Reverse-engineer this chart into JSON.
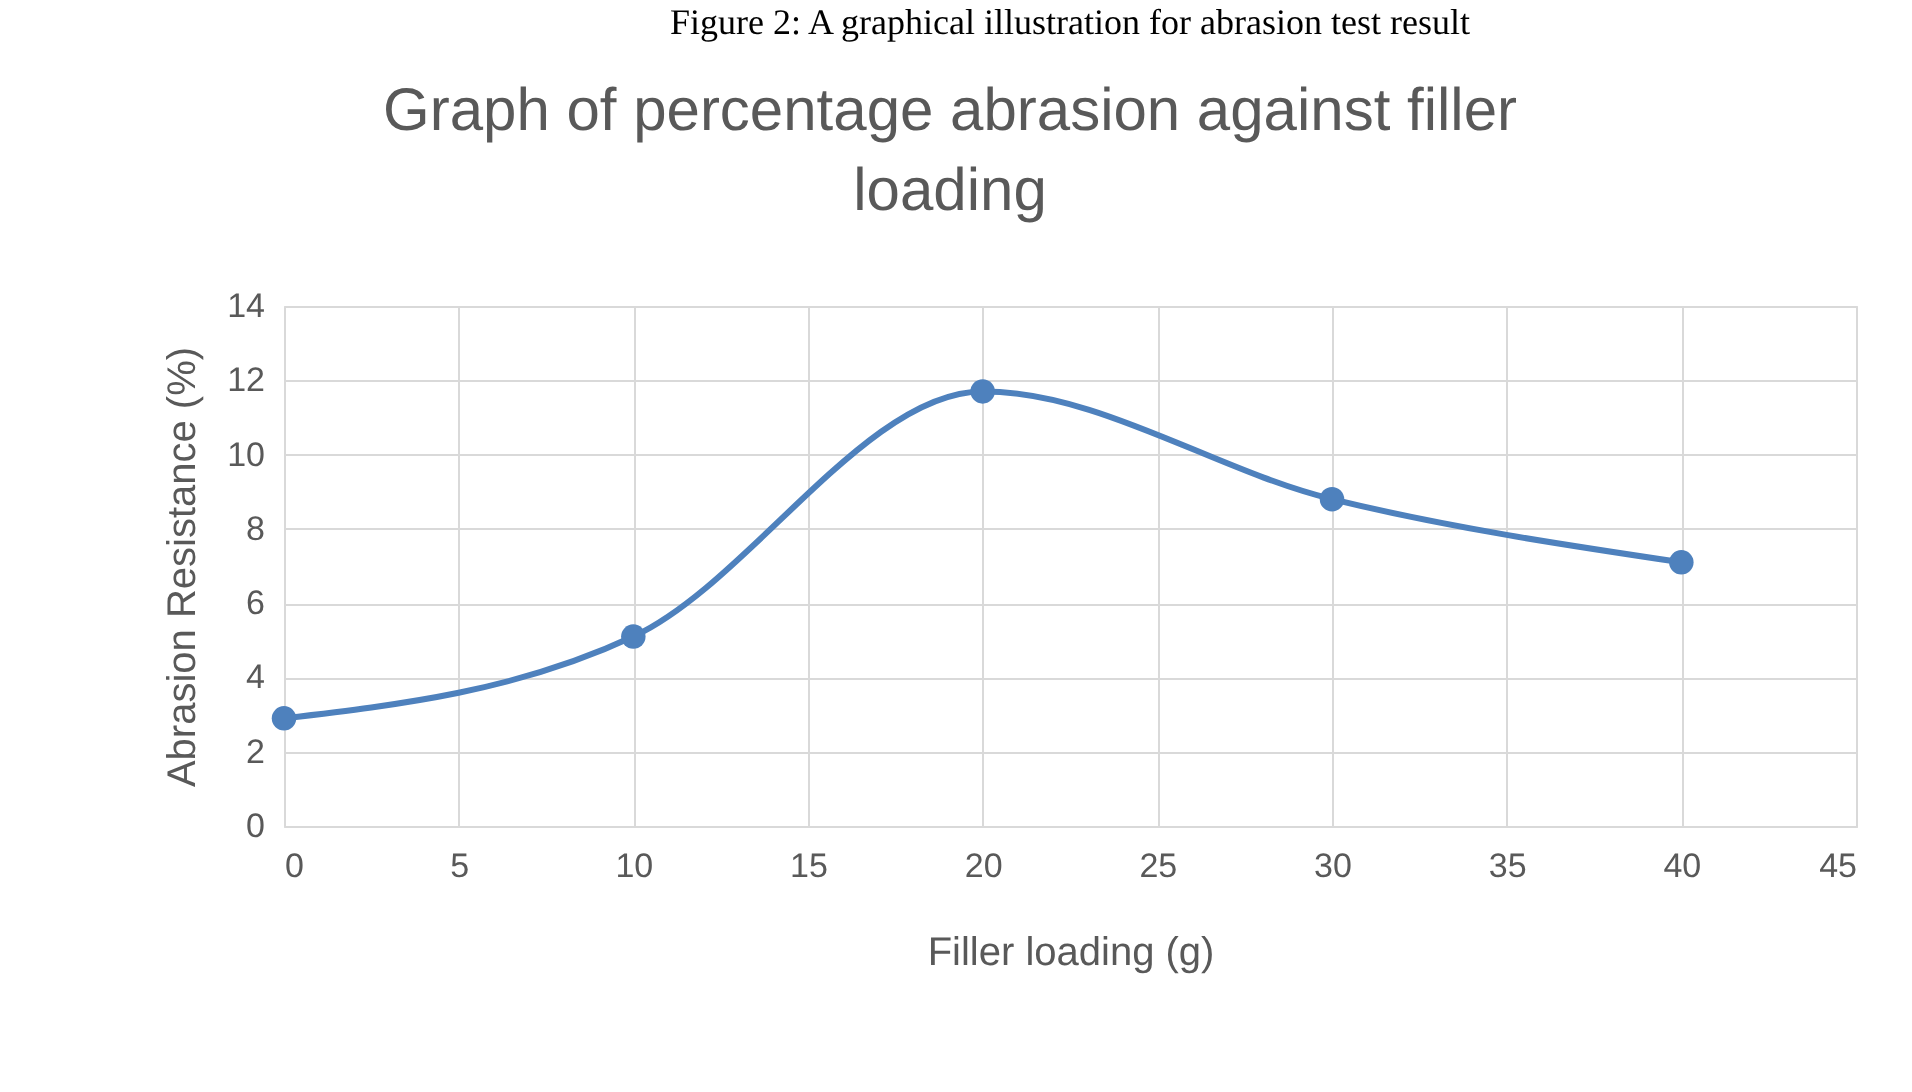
{
  "chart_data": {
    "type": "line",
    "title": [
      "Graph of percentage abrasion against filler",
      "loading"
    ],
    "annotations": [
      "Figure 2: A graphical illustration for abrasion test result"
    ],
    "xlabel": "Filler loading (g)",
    "ylabel": "Abrasion Resistance (%)",
    "x": [
      0,
      10,
      20,
      30,
      40
    ],
    "series": [
      {
        "color": "#4e81bd",
        "values": [
          2.9,
          5.1,
          11.7,
          8.8,
          7.1
        ]
      }
    ],
    "xlim": [
      0,
      45
    ],
    "xticks": [
      0,
      5,
      10,
      15,
      20,
      25,
      30,
      35,
      40,
      45
    ],
    "ylim": [
      0,
      14
    ],
    "yticks": [
      0,
      2,
      4,
      6,
      8,
      10,
      12,
      14
    ],
    "grid": true,
    "marker": "circle",
    "line_style": "solid"
  }
}
